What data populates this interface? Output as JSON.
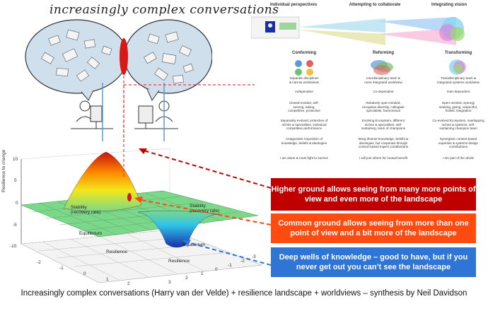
{
  "title": "increasingly complex conversations",
  "columns": [
    {
      "header": "Individual perspectives",
      "type": "Conforming",
      "cells": [
        "Separate disciplines\n& narrow worldviews",
        "Independent",
        "Closed-minded, self-\nserving, taking,\ncompetitive, protective",
        "Separately evolved, protective of\nnichés & specialities, individual\ncompetitive  performance",
        "Antagonistic imposition of\nknowledge, beliefs & ideologies",
        "I am alone & must fight to survive"
      ]
    },
    {
      "header": "Attempting to collaborate",
      "type": "Reforming",
      "cells": [
        "Interdisciplinary team &\nmore integrated worldview",
        "Co-dependent",
        "Relatively open-minded,\nrecognise diversity, collegiate\nspecialists, harmonious",
        "Evolving Ecosystem, different\nniches & specialities, self-\nsustaining, team of champions",
        "Bring diverse knowledge, beliefs &\nideologies, but cooperate through\ncontext-based expert contributions",
        "I will join others for mutual benefit"
      ]
    },
    {
      "header": "Integrating vision",
      "type": "Transforming",
      "cells": [
        "Transdisciplinary team &\nintegrated systems worldview",
        "Inter-dependent",
        "Open-minded, synergy\nseeking, giving, respectful,\nholistic integration",
        "Co-evolved Ecosystem, overlapping\nniches & systems, self-\nsustaining champion team",
        "Synergistic context-based\nexpertise & systems design\ncontributions",
        "I am part of the whole"
      ]
    }
  ],
  "banners": {
    "high": "Higher ground allows seeing from many more points of view and even more of the landscape",
    "common": "Common ground allows seeing from more than one point of view and a bit more of the landscape",
    "deep": "Deep wells of knowledge – good to have, but if you never get out you can’t see the landscape"
  },
  "plot": {
    "zlabel": "Resilience to change",
    "zticks": [
      "10",
      "5",
      "0",
      "-5",
      "-10"
    ],
    "label_stability_left": "Stability\n(recovery rate)",
    "label_stability_right": "Stability\n(recovery rate)",
    "label_equilibrium_left": "Equilibrium",
    "label_equilibrium_right": "Equilibrium",
    "label_resilience_left": "Resilience",
    "label_resilience_right": "Resilience",
    "xticks": [
      "-2",
      "-1",
      "0",
      "1",
      "2"
    ],
    "yticks": [
      "3",
      "2",
      "1",
      "0",
      "-1",
      "-2",
      "-3"
    ]
  },
  "caption": "Increasingly complex conversations (Harry van der Velde) + resilience landscape + worldviews – synthesis by Neil Davidson",
  "colors": {
    "high": "#c00000",
    "common": "#ff4a10",
    "deep": "#2e75d6"
  }
}
